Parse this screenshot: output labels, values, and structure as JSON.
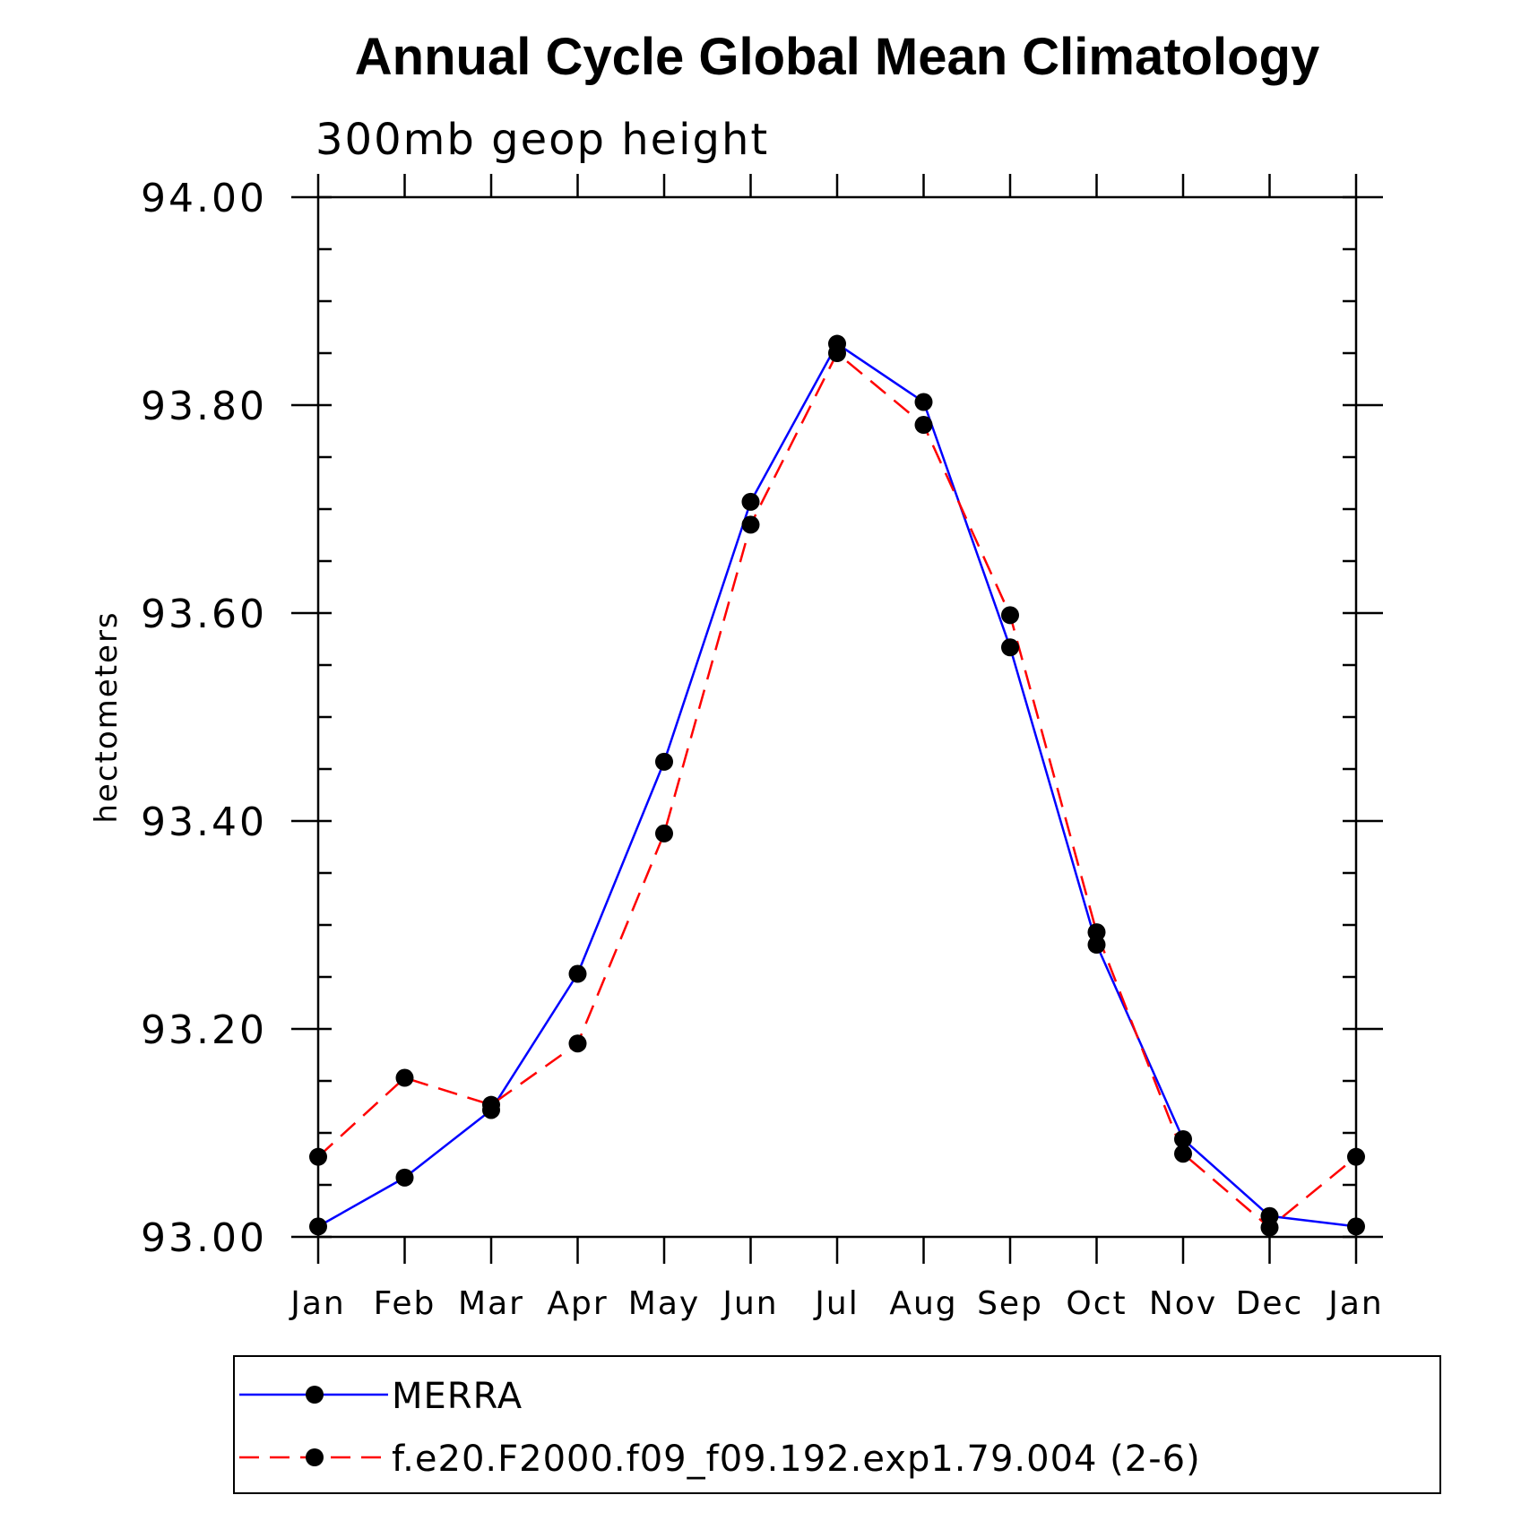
{
  "chart_data": {
    "type": "line",
    "title": "Annual Cycle Global Mean Climatology",
    "subtitle": "300mb  geop  height",
    "xlabel": "",
    "ylabel": "hectometers",
    "categories": [
      "Jan",
      "Feb",
      "Mar",
      "Apr",
      "May",
      "Jun",
      "Jul",
      "Aug",
      "Sep",
      "Oct",
      "Nov",
      "Dec",
      "Jan"
    ],
    "ylim": [
      93.0,
      94.0
    ],
    "yticks": [
      "93.00",
      "93.20",
      "93.40",
      "93.60",
      "93.80",
      "94.00"
    ],
    "grid": false,
    "legend_position": "bottom",
    "series": [
      {
        "name": "MERRA",
        "color": "#0000ff",
        "line_style": "solid",
        "marker": "filled-circle",
        "values": [
          93.01,
          93.057,
          93.122,
          93.253,
          93.457,
          93.707,
          93.859,
          93.803,
          93.567,
          93.281,
          93.094,
          93.02,
          93.01
        ]
      },
      {
        "name": "f.e20.F2000.f09_f09.192.exp1.79.004 (2-6)",
        "color": "#ff0000",
        "line_style": "dashed",
        "marker": "filled-circle",
        "values": [
          93.077,
          93.153,
          93.127,
          93.186,
          93.388,
          93.685,
          93.85,
          93.781,
          93.598,
          93.293,
          93.08,
          93.009,
          93.077
        ]
      }
    ]
  }
}
